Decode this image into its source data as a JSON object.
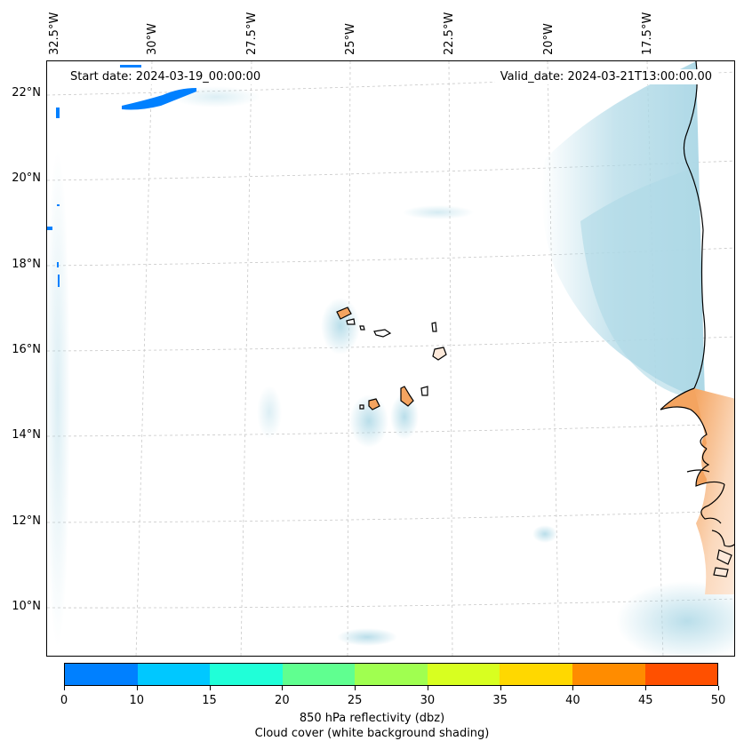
{
  "map": {
    "start_date": "Start date: 2024-03-19_00:00:00",
    "valid_date": "Valid_date: 2024-03-21T13:00:00.00",
    "lon_labels": [
      "32.5°W",
      "30°W",
      "27.5°W",
      "25°W",
      "22.5°W",
      "20°W",
      "17.5°W"
    ],
    "lat_labels": [
      "22°N",
      "20°N",
      "18°N",
      "16°N",
      "14°N",
      "12°N",
      "10°N"
    ]
  },
  "colorbar": {
    "ticks": [
      "0",
      "10",
      "15",
      "20",
      "25",
      "30",
      "35",
      "40",
      "45",
      "50"
    ],
    "colors": [
      "#0080ff",
      "#00c8ff",
      "#20ffd8",
      "#60ff90",
      "#a0ff50",
      "#d8ff20",
      "#ffd800",
      "#ff8c00",
      "#ff5000"
    ],
    "label_line1": "850 hPa reflectivity (dbz)",
    "label_line2": "Cloud cover (white background shading)"
  },
  "colors": {
    "land": "#f4a460",
    "cloud": "#add8e6",
    "reflectivity_low": "#0080ff"
  }
}
